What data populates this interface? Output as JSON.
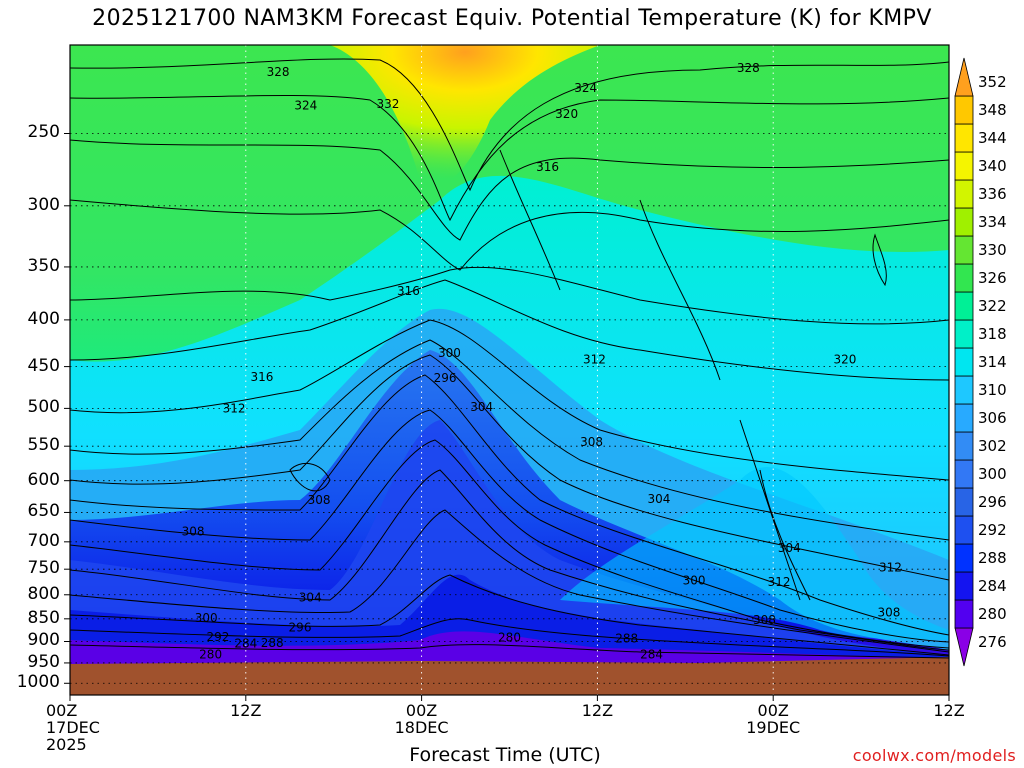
{
  "title": "2025121700 NAM3KM Forecast Equiv. Potential Temperature (K) for KMPV",
  "credit": "coolwx.com/models",
  "chart_data": {
    "type": "heatmap",
    "title": "2025121700 NAM3KM Forecast Equiv. Potential Temperature (K) for KMPV",
    "xlabel": "Forecast Time (UTC)",
    "ylabel": "",
    "x_ticks": [
      {
        "line1": "00Z",
        "line2": "17DEC",
        "line3": "2025",
        "hour": 0
      },
      {
        "line1": "12Z",
        "line2": "",
        "line3": "",
        "hour": 12
      },
      {
        "line1": "00Z",
        "line2": "18DEC",
        "line3": "",
        "hour": 24
      },
      {
        "line1": "12Z",
        "line2": "",
        "line3": "",
        "hour": 36
      },
      {
        "line1": "00Z",
        "line2": "19DEC",
        "line3": "",
        "hour": 48
      },
      {
        "line1": "12Z",
        "line2": "",
        "line3": "",
        "hour": 60
      }
    ],
    "xlim_hours": [
      0,
      60
    ],
    "y_ticks": [
      1000,
      950,
      900,
      850,
      800,
      750,
      700,
      650,
      600,
      550,
      500,
      450,
      400,
      350,
      300,
      250
    ],
    "ylim_hpa": [
      1030,
      200
    ],
    "y_scale": "log",
    "grid": true,
    "colorbar": {
      "levels": [
        276,
        280,
        284,
        288,
        292,
        296,
        300,
        302,
        306,
        310,
        314,
        318,
        322,
        326,
        330,
        334,
        336,
        340,
        344,
        348,
        352
      ],
      "labels": [
        "276",
        "280",
        "284",
        "288",
        "292",
        "296",
        "300",
        "302",
        "306",
        "310",
        "314",
        "318",
        "322",
        "326",
        "330",
        "334",
        "336",
        "340",
        "344",
        "348",
        "352"
      ],
      "colors": [
        "#8a00e6",
        "#5200f0",
        "#1414f0",
        "#0032ff",
        "#1e50f0",
        "#2864e6",
        "#3278f5",
        "#328cf5",
        "#28aaff",
        "#1ec8ff",
        "#00e6f0",
        "#00f0c8",
        "#00f096",
        "#32e650",
        "#64e632",
        "#a0f000",
        "#d2f500",
        "#f5f500",
        "#ffe600",
        "#ffc800",
        "#ffa01e"
      ]
    },
    "surface_color": "#a0522d",
    "contour_labels": [
      {
        "value": "328",
        "hour": 14.2,
        "p": 214
      },
      {
        "value": "324",
        "hour": 16.1,
        "p": 233
      },
      {
        "value": "332",
        "hour": 21.7,
        "p": 232
      },
      {
        "value": "324",
        "hour": 35.2,
        "p": 223
      },
      {
        "value": "320",
        "hour": 33.9,
        "p": 238
      },
      {
        "value": "328",
        "hour": 46.3,
        "p": 212
      },
      {
        "value": "316",
        "hour": 32.6,
        "p": 272
      },
      {
        "value": "316",
        "hour": 23.1,
        "p": 372
      },
      {
        "value": "312",
        "hour": 35.8,
        "p": 442
      },
      {
        "value": "320",
        "hour": 52.9,
        "p": 442
      },
      {
        "value": "316",
        "hour": 13.1,
        "p": 462
      },
      {
        "value": "312",
        "hour": 11.2,
        "p": 500
      },
      {
        "value": "300",
        "hour": 25.9,
        "p": 435
      },
      {
        "value": "296",
        "hour": 25.6,
        "p": 463
      },
      {
        "value": "304",
        "hour": 28.1,
        "p": 498
      },
      {
        "value": "308",
        "hour": 35.6,
        "p": 544
      },
      {
        "value": "304",
        "hour": 40.2,
        "p": 628
      },
      {
        "value": "308",
        "hour": 17.0,
        "p": 630
      },
      {
        "value": "308",
        "hour": 8.4,
        "p": 682
      },
      {
        "value": "304",
        "hour": 49.1,
        "p": 711
      },
      {
        "value": "300",
        "hour": 42.6,
        "p": 772
      },
      {
        "value": "312",
        "hour": 48.4,
        "p": 775
      },
      {
        "value": "312",
        "hour": 56.0,
        "p": 747
      },
      {
        "value": "304",
        "hour": 16.4,
        "p": 806
      },
      {
        "value": "308",
        "hour": 55.9,
        "p": 837
      },
      {
        "value": "308",
        "hour": 47.4,
        "p": 853
      },
      {
        "value": "300",
        "hour": 9.3,
        "p": 848
      },
      {
        "value": "296",
        "hour": 15.7,
        "p": 869
      },
      {
        "value": "292",
        "hour": 10.1,
        "p": 890
      },
      {
        "value": "284",
        "hour": 12.0,
        "p": 904
      },
      {
        "value": "288",
        "hour": 13.8,
        "p": 903
      },
      {
        "value": "280",
        "hour": 9.6,
        "p": 930
      },
      {
        "value": "280",
        "hour": 30.0,
        "p": 891
      },
      {
        "value": "288",
        "hour": 38.0,
        "p": 893
      },
      {
        "value": "284",
        "hour": 39.7,
        "p": 930
      }
    ]
  }
}
